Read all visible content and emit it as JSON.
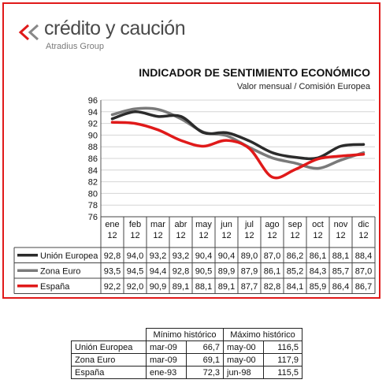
{
  "logo": {
    "brand": "crédito y caución",
    "sub": "Atradius Group"
  },
  "title": "INDICADOR DE SENTIMIENTO ECONÓMICO",
  "subtitle": "Valor mensual / Comisión Europea",
  "colors": {
    "frame": "#e01a1a",
    "union": "#2b2b2b",
    "zona": "#7a7a7a",
    "espana": "#e01a1a"
  },
  "chart_data": {
    "type": "line",
    "title": "INDICADOR DE SENTIMIENTO ECONÓMICO",
    "subtitle": "Valor mensual / Comisión Europea",
    "categories": [
      [
        "ene",
        "12"
      ],
      [
        "feb",
        "12"
      ],
      [
        "mar",
        "12"
      ],
      [
        "abr",
        "12"
      ],
      [
        "may",
        "12"
      ],
      [
        "jun",
        "12"
      ],
      [
        "jul",
        "12"
      ],
      [
        "ago",
        "12"
      ],
      [
        "sep",
        "12"
      ],
      [
        "oct",
        "12"
      ],
      [
        "nov",
        "12"
      ],
      [
        "dic",
        "12"
      ]
    ],
    "ylim": [
      76,
      96
    ],
    "yticks": [
      "76",
      "78",
      "80",
      "82",
      "84",
      "86",
      "88",
      "90",
      "92",
      "94",
      "96"
    ],
    "grid": true,
    "legend": "table-below",
    "series": [
      {
        "name": "Unión Europea",
        "color": "#2b2b2b",
        "values": [
          92.8,
          94.0,
          93.2,
          93.2,
          90.4,
          90.4,
          89.0,
          87.0,
          86.2,
          86.1,
          88.1,
          88.4
        ],
        "labels": [
          "92,8",
          "94,0",
          "93,2",
          "93,2",
          "90,4",
          "90,4",
          "89,0",
          "87,0",
          "86,2",
          "86,1",
          "88,1",
          "88,4"
        ]
      },
      {
        "name": "Zona Euro",
        "color": "#7a7a7a",
        "values": [
          93.5,
          94.5,
          94.4,
          92.8,
          90.5,
          89.9,
          87.9,
          86.1,
          85.2,
          84.3,
          85.7,
          87.0
        ],
        "labels": [
          "93,5",
          "94,5",
          "94,4",
          "92,8",
          "90,5",
          "89,9",
          "87,9",
          "86,1",
          "85,2",
          "84,3",
          "85,7",
          "87,0"
        ]
      },
      {
        "name": "España",
        "color": "#e01a1a",
        "values": [
          92.2,
          92.0,
          90.9,
          89.1,
          88.1,
          89.1,
          87.7,
          82.8,
          84.1,
          85.9,
          86.4,
          86.7
        ],
        "labels": [
          "92,2",
          "92,0",
          "90,9",
          "89,1",
          "88,1",
          "89,1",
          "87,7",
          "82,8",
          "84,1",
          "85,9",
          "86,4",
          "86,7"
        ]
      }
    ]
  },
  "summary": {
    "headers": [
      "Mínimo histórico",
      "Máximo histórico"
    ],
    "rows": [
      {
        "name": "Unión Europea",
        "min_date": "mar-09",
        "min_val": "66,7",
        "max_date": "may-00",
        "max_val": "116,5"
      },
      {
        "name": "Zona Euro",
        "min_date": "mar-09",
        "min_val": "69,1",
        "max_date": "may-00",
        "max_val": "117,9"
      },
      {
        "name": "España",
        "min_date": "ene-93",
        "min_val": "72,3",
        "max_date": "jun-98",
        "max_val": "115,5"
      }
    ]
  }
}
